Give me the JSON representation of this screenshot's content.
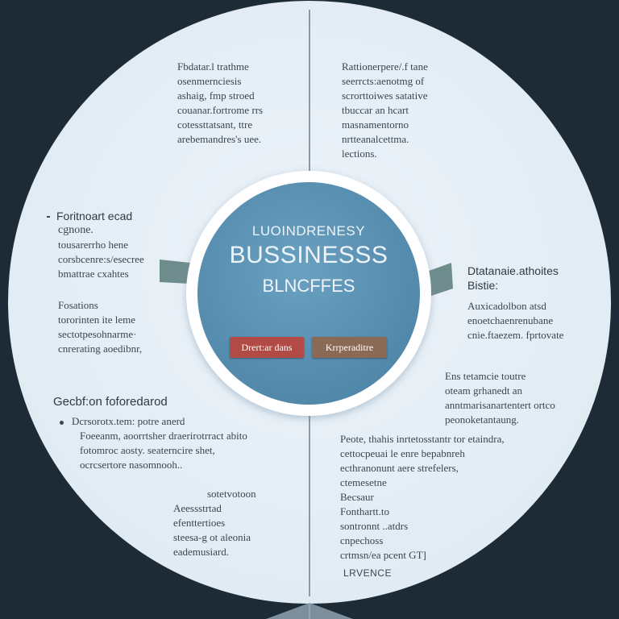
{
  "colors": {
    "background": "#1c2b36",
    "disc": "#e4eef6",
    "hub": "#5b92b3",
    "hub_ring": "#ffffff",
    "tab": "#6f8c8c",
    "button_left": "#b24b45",
    "button_right": "#8a6a55",
    "text": "#3a4650"
  },
  "hub": {
    "kicker": "LUOINDRENESY",
    "title": "BUSSINESSS",
    "subtitle": "BLNCFFES",
    "button_left": "Drert:ar dans",
    "button_right": "Krrperaditre"
  },
  "top_left": {
    "lines": [
      "Fbdatar.l trathme",
      "osenmernciesis",
      "ashaig, fmp stroed",
      "couanar.fortrome rrs",
      "cotessttatsant, ttre",
      "arebemandres's uee."
    ]
  },
  "top_right": {
    "lines": [
      "Rattionerpere/.f tane",
      "seerrcts:aenotmg of",
      "scrorttoiwes satative",
      "tbuccar an hcart",
      "masnamentorno",
      "nrtteanalcettma.",
      "lections."
    ]
  },
  "mid_left": {
    "heading": "Foritnoart ecad",
    "lines": [
      "cgnone.",
      "tousarerrho hene",
      "corsbcenre:s/esecree",
      "bmattrae cxahtes"
    ]
  },
  "mid_left2": {
    "lines": [
      "Fosations",
      "tororinten ite leme",
      "sectotpesohnarme·",
      "cnrerating aoedibnr,"
    ]
  },
  "mid_right": {
    "heading": "Dtatanaie.athoites",
    "subheading": "Bistie:",
    "lines": [
      "Auxicadolbon atsd",
      "enoetchaenrenubane",
      "cnie.ftaezem. fprtovate"
    ]
  },
  "lower_right": {
    "lines": [
      "Ens tetamcie toutre",
      "oteam grhanedt an",
      "anntmarisanartentert ortco",
      "peonoketantaung."
    ]
  },
  "lower_left": {
    "heading": "Gecbf:on foforedarod",
    "lines": [
      "Dcrsorotx.tem: potre anerd",
      "Foeeanm, aoorrtsher draerirotrract abito",
      "fotomroc aosty. seaterncire shet,",
      "ocrcsertore nasomnooh.."
    ]
  },
  "bottom_left": {
    "lines": [
      "sotetvotoon",
      "Aeessstrtad",
      "efenttertioes",
      "steesa-g ot aleonia",
      "eademusiard."
    ]
  },
  "bottom_right": {
    "lines": [
      "Peote, thahis inrtetosstantr tor etaindra,",
      "cettocpeuai le enre bepabnreh",
      "ecthranonunt aere strefelers,",
      "ctemesetne",
      "Becsaur",
      "Fonthartt.to",
      "sontronnt ..atdrs",
      "cnpechoss",
      "crtmsn/ea pcent GT]"
    ]
  },
  "footer": {
    "label": "LRVENCE"
  }
}
